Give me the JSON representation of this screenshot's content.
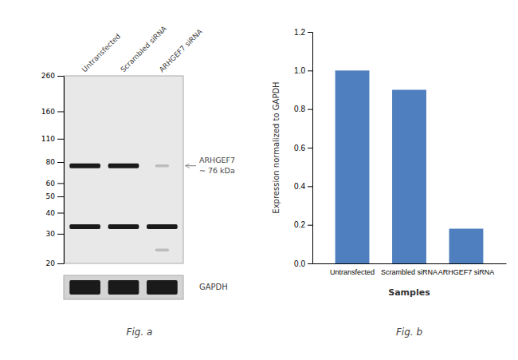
{
  "chart_data": [
    {
      "type": "blot",
      "title": "Fig. a",
      "categories": [
        "Untransfected",
        "Scrambled siRNA",
        "ARHGEF7 siRNA"
      ],
      "log": "y",
      "ylim": [
        20,
        260
      ],
      "yticks": [
        260,
        160,
        110,
        80,
        60,
        50,
        40,
        30,
        20
      ],
      "bands": [
        [
          76,
          33
        ],
        [
          76,
          33
        ],
        [
          33
        ]
      ],
      "faint_bands": [
        [],
        [],
        [
          76,
          24
        ]
      ],
      "annotations": [
        "ARHGEF7",
        "~ 76 kDa",
        "GAPDH"
      ]
    },
    {
      "type": "bar",
      "title": "Fig. b",
      "categories": [
        "Untransfected",
        "Scrambled siRNA",
        "ARHGEF7 siRNA"
      ],
      "values": [
        1.0,
        0.9,
        0.18
      ],
      "color": "#4f7fbe",
      "xlabel": "Samples",
      "ylabel": "Expression normalized to GAPDH",
      "ylim": [
        0,
        1.2
      ],
      "yticks": [
        {
          "value": 0,
          "label": "0.0"
        },
        0.2,
        0.4,
        0.6,
        0.8,
        {
          "value": 1.0,
          "label": "1.0"
        },
        1.2
      ],
      "grid": false
    }
  ]
}
